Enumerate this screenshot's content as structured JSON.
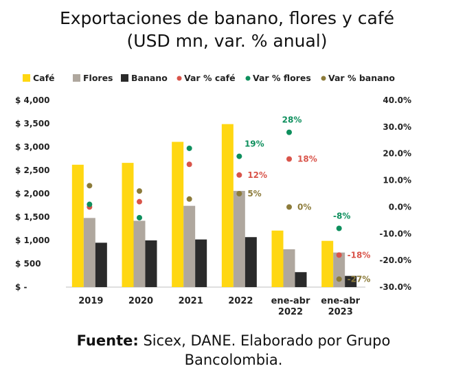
{
  "title": "Exportaciones de banano, flores y café",
  "subtitle": "(USD mn, var. % anual)",
  "footer": {
    "label": "Fuente:",
    "text": "Sicex, DANE. Elaborado por Grupo Bancolombia."
  },
  "colors": {
    "cafe": "#FFD712",
    "flores": "#AFA79E",
    "banano": "#2A2A2A",
    "var_cafe": "#D9544A",
    "var_flores": "#0E8F5D",
    "var_banano": "#8C7B3A"
  },
  "chart_data": {
    "type": "bar",
    "categories": [
      "2019",
      "2020",
      "2021",
      "2022",
      "ene-abr 2022",
      "ene-abr 2023"
    ],
    "y_left": {
      "range": [
        0,
        4000
      ],
      "ticks": [
        "$ -",
        "$ 500",
        "$ 1,000",
        "$ 1,500",
        "$ 2,000",
        "$ 2,500",
        "$ 3,000",
        "$ 3,500",
        "$ 4,000"
      ]
    },
    "y_right": {
      "range": [
        -30,
        40
      ],
      "ticks": [
        "-30.0%",
        "-20.0%",
        "-10.0%",
        "0.0%",
        "10.0%",
        "20.0%",
        "30.0%",
        "40.0%"
      ]
    },
    "legend_position": "top",
    "grid": false,
    "series": [
      {
        "name": "Café",
        "kind": "bar",
        "axis": "left",
        "values": [
          2620,
          2660,
          3110,
          3490,
          1210,
          990
        ]
      },
      {
        "name": "Flores",
        "kind": "bar",
        "axis": "left",
        "values": [
          1480,
          1420,
          1740,
          2060,
          810,
          740
        ]
      },
      {
        "name": "Banano",
        "kind": "bar",
        "axis": "left",
        "values": [
          950,
          1000,
          1020,
          1070,
          320,
          240
        ]
      },
      {
        "name": "Var % café",
        "kind": "point",
        "axis": "right",
        "values": [
          0,
          2,
          16,
          12,
          18,
          -18
        ],
        "labels": [
          "",
          "",
          "",
          "12%",
          "18%",
          "-18%"
        ]
      },
      {
        "name": "Var % flores",
        "kind": "point",
        "axis": "right",
        "values": [
          1,
          -4,
          22,
          19,
          28,
          -8
        ],
        "labels": [
          "",
          "",
          "",
          "19%",
          "28%",
          "-8%"
        ]
      },
      {
        "name": "Var % banano",
        "kind": "point",
        "axis": "right",
        "values": [
          8,
          6,
          3,
          5,
          0,
          -27
        ],
        "labels": [
          "",
          "",
          "",
          "5%",
          "0%",
          "-27%"
        ]
      }
    ]
  }
}
